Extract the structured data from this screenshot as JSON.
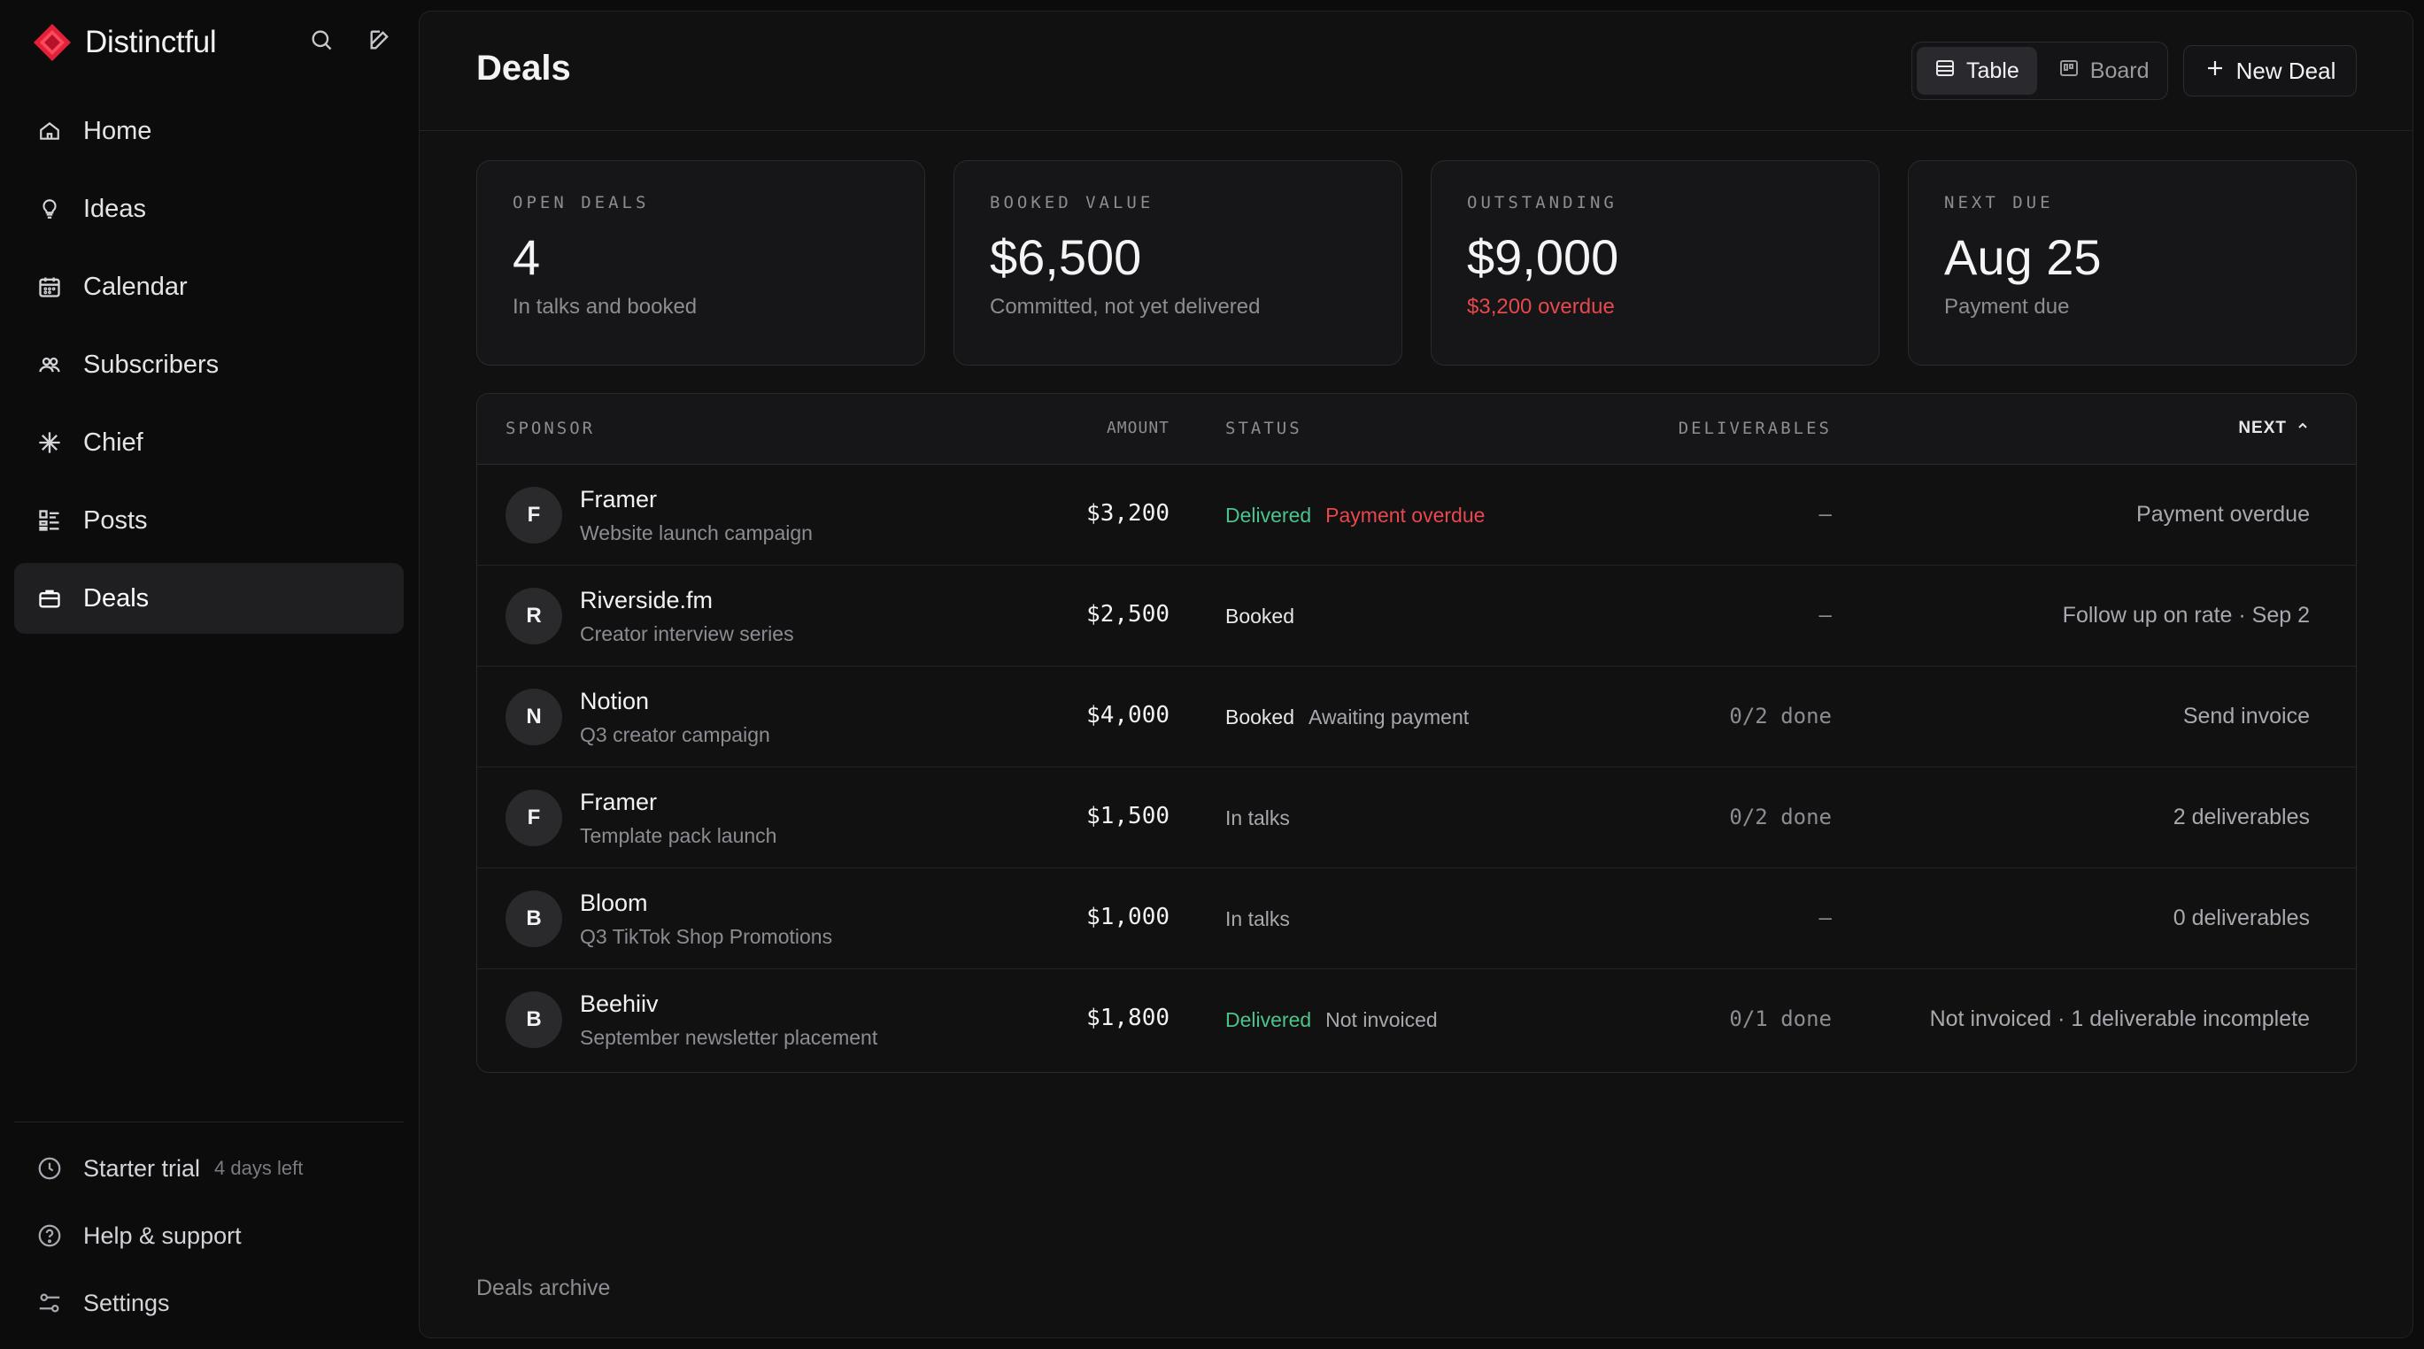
{
  "brand": {
    "name": "Distinctful",
    "accent": "#e5203a"
  },
  "sidebar": {
    "top_icons": [
      "search-icon",
      "compose-icon"
    ],
    "items": [
      {
        "label": "Home",
        "icon": "home-icon",
        "active": false
      },
      {
        "label": "Ideas",
        "icon": "lightbulb-icon",
        "active": false
      },
      {
        "label": "Calendar",
        "icon": "calendar-icon",
        "active": false
      },
      {
        "label": "Subscribers",
        "icon": "users-icon",
        "active": false
      },
      {
        "label": "Chief",
        "icon": "sparkle-icon",
        "active": false
      },
      {
        "label": "Posts",
        "icon": "list-icon",
        "active": false
      },
      {
        "label": "Deals",
        "icon": "briefcase-icon",
        "active": true
      }
    ],
    "bottom": {
      "trial_label": "Starter trial",
      "trial_remaining": "4 days left",
      "help_label": "Help & support",
      "settings_label": "Settings"
    }
  },
  "header": {
    "title": "Deals",
    "view_toggle": {
      "table_label": "Table",
      "board_label": "Board",
      "selected": "Table"
    },
    "new_deal_label": "New Deal"
  },
  "stats": [
    {
      "label": "OPEN DEALS",
      "value": "4",
      "sub": "In talks and booked",
      "sub_danger": false
    },
    {
      "label": "BOOKED VALUE",
      "value": "$6,500",
      "sub": "Committed, not yet delivered",
      "sub_danger": false
    },
    {
      "label": "OUTSTANDING",
      "value": "$9,000",
      "sub": "$3,200 overdue",
      "sub_danger": true
    },
    {
      "label": "NEXT DUE",
      "value": "Aug 25",
      "sub": "Payment due",
      "sub_danger": false
    }
  ],
  "table": {
    "columns": {
      "sponsor": "SPONSOR",
      "amount": "AMOUNT",
      "status": "STATUS",
      "deliverables": "DELIVERABLES",
      "next": "NEXT"
    },
    "rows": [
      {
        "initial": "F",
        "name": "Framer",
        "sub": "Website launch campaign",
        "amount": "$3,200",
        "status": "Delivered",
        "status_color": "green",
        "status_extra": "Payment overdue",
        "extra_color": "red",
        "deliverables": "–",
        "next": "Payment overdue"
      },
      {
        "initial": "R",
        "name": "Riverside.fm",
        "sub": "Creator interview series",
        "amount": "$2,500",
        "status": "Booked",
        "status_color": "white",
        "status_extra": "",
        "extra_color": "grey",
        "deliverables": "–",
        "next": "Follow up on rate · Sep 2"
      },
      {
        "initial": "N",
        "name": "Notion",
        "sub": "Q3 creator campaign",
        "amount": "$4,000",
        "status": "Booked",
        "status_color": "white",
        "status_extra": "Awaiting payment",
        "extra_color": "grey",
        "deliverables": "0/2 done",
        "next": "Send invoice"
      },
      {
        "initial": "F",
        "name": "Framer",
        "sub": "Template pack launch",
        "amount": "$1,500",
        "status": "In talks",
        "status_color": "grey",
        "status_extra": "",
        "extra_color": "grey",
        "deliverables": "0/2 done",
        "next": "2 deliverables"
      },
      {
        "initial": "B",
        "name": "Bloom",
        "sub": "Q3 TikTok Shop Promotions",
        "amount": "$1,000",
        "status": "In talks",
        "status_color": "grey",
        "status_extra": "",
        "extra_color": "grey",
        "deliverables": "–",
        "next": "0 deliverables"
      },
      {
        "initial": "B",
        "name": "Beehiiv",
        "sub": "September newsletter placement",
        "amount": "$1,800",
        "status": "Delivered",
        "status_color": "green",
        "status_extra": "Not invoiced",
        "extra_color": "grey",
        "deliverables": "0/1 done",
        "next": "Not invoiced · 1 deliverable incomplete"
      }
    ]
  },
  "footer": {
    "archive_label": "Deals archive"
  },
  "colors": {
    "status_green": "#4cc38a",
    "danger": "#e5484d"
  }
}
